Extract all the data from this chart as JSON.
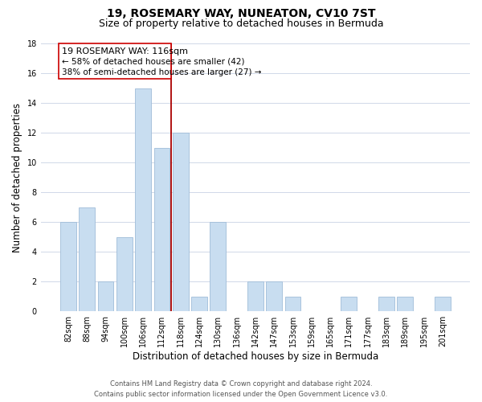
{
  "title": "19, ROSEMARY WAY, NUNEATON, CV10 7ST",
  "subtitle": "Size of property relative to detached houses in Bermuda",
  "xlabel": "Distribution of detached houses by size in Bermuda",
  "ylabel": "Number of detached properties",
  "bar_color": "#c8ddf0",
  "bar_edge_color": "#a0bcd8",
  "categories": [
    "82sqm",
    "88sqm",
    "94sqm",
    "100sqm",
    "106sqm",
    "112sqm",
    "118sqm",
    "124sqm",
    "130sqm",
    "136sqm",
    "142sqm",
    "147sqm",
    "153sqm",
    "159sqm",
    "165sqm",
    "171sqm",
    "177sqm",
    "183sqm",
    "189sqm",
    "195sqm",
    "201sqm"
  ],
  "values": [
    6,
    7,
    2,
    5,
    15,
    11,
    12,
    1,
    6,
    0,
    2,
    2,
    1,
    0,
    0,
    1,
    0,
    1,
    1,
    0,
    1
  ],
  "ylim": [
    0,
    18
  ],
  "yticks": [
    0,
    2,
    4,
    6,
    8,
    10,
    12,
    14,
    16,
    18
  ],
  "property_label": "19 ROSEMARY WAY: 116sqm",
  "annotation_line1": "← 58% of detached houses are smaller (42)",
  "annotation_line2": "38% of semi-detached houses are larger (27) →",
  "vline_color": "#aa0000",
  "box_color": "#ffffff",
  "box_edge_color": "#cc0000",
  "footer_line1": "Contains HM Land Registry data © Crown copyright and database right 2024.",
  "footer_line2": "Contains public sector information licensed under the Open Government Licence v3.0.",
  "background_color": "#ffffff",
  "grid_color": "#d0d8e8",
  "title_fontsize": 10,
  "subtitle_fontsize": 9,
  "axis_label_fontsize": 8.5,
  "tick_fontsize": 7,
  "annotation_fontsize": 8,
  "annotation_sub_fontsize": 7.5,
  "footer_fontsize": 6
}
